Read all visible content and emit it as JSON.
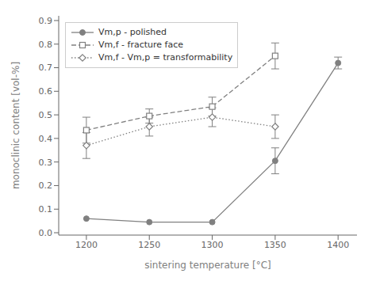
{
  "chart_data": {
    "type": "line",
    "xlabel": "sintering temperature [°C]",
    "ylabel": "monoclinic content [vol-%]",
    "x": [
      1200,
      1250,
      1300,
      1350,
      1400
    ],
    "xlim": [
      1178,
      1415
    ],
    "xticks": [
      1200,
      1250,
      1300,
      1350,
      1400
    ],
    "ylim": [
      -0.01,
      0.92
    ],
    "yticks": [
      {
        "value": 0.0,
        "label": "0.0"
      },
      0.1,
      0.2,
      0.3,
      0.4,
      0.5,
      0.6,
      0.7,
      0.8,
      0.9
    ],
    "grid": false,
    "legend": "upper left",
    "series": [
      {
        "name": "Vm,p - polished",
        "color": "#808080",
        "marker": "circle",
        "line_style": "solid",
        "values": [
          0.06,
          0.045,
          0.045,
          0.305,
          0.72
        ],
        "errors": [
          0.0,
          0.0,
          0.0,
          0.055,
          0.025
        ]
      },
      {
        "name": "Vm,f - fracture face",
        "color": "#808080",
        "marker": "open_square",
        "line_style": "dashed",
        "values": [
          0.435,
          0.495,
          0.535,
          0.75,
          null
        ],
        "errors": [
          0.055,
          0.03,
          0.04,
          0.055,
          null
        ]
      },
      {
        "name": "Vm,f - Vm,p = transformability",
        "color": "#808080",
        "marker": "open_diamond",
        "line_style": "dotted",
        "values": [
          0.37,
          0.45,
          0.49,
          0.45,
          null
        ],
        "errors": [
          0.055,
          0.04,
          0.04,
          0.05,
          null
        ]
      }
    ]
  }
}
